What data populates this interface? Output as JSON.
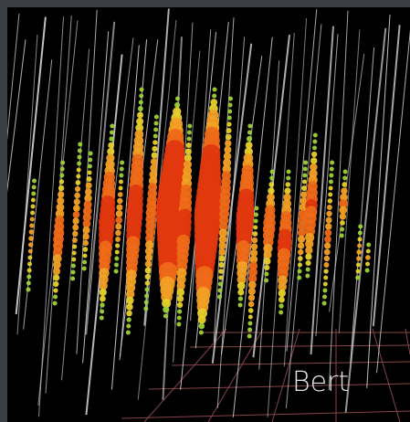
{
  "label": "Bert"
}
